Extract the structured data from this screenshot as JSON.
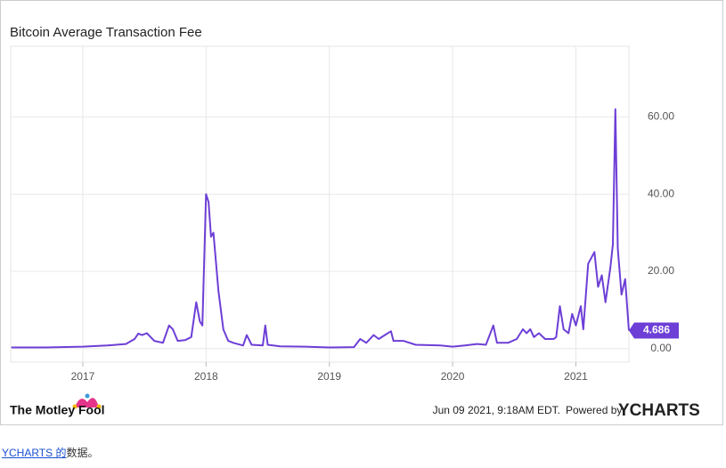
{
  "chart_data": {
    "type": "line",
    "title": "Bitcoin Average Transaction Fee",
    "x": [
      2016.42,
      2016.7,
      2017.0,
      2017.2,
      2017.35,
      2017.42,
      2017.45,
      2017.48,
      2017.52,
      2017.58,
      2017.65,
      2017.7,
      2017.73,
      2017.77,
      2017.83,
      2017.88,
      2017.92,
      2017.95,
      2017.97,
      2018.0,
      2018.02,
      2018.04,
      2018.06,
      2018.1,
      2018.14,
      2018.18,
      2018.22,
      2018.3,
      2018.33,
      2018.37,
      2018.46,
      2018.48,
      2018.5,
      2018.6,
      2018.8,
      2019.0,
      2019.2,
      2019.25,
      2019.3,
      2019.36,
      2019.4,
      2019.45,
      2019.5,
      2019.52,
      2019.6,
      2019.7,
      2019.9,
      2020.0,
      2020.1,
      2020.2,
      2020.27,
      2020.33,
      2020.36,
      2020.45,
      2020.52,
      2020.57,
      2020.6,
      2020.63,
      2020.66,
      2020.7,
      2020.75,
      2020.82,
      2020.84,
      2020.87,
      2020.9,
      2020.94,
      2020.97,
      2021.0,
      2021.04,
      2021.06,
      2021.1,
      2021.15,
      2021.18,
      2021.21,
      2021.24,
      2021.28,
      2021.3,
      2021.32,
      2021.34,
      2021.37,
      2021.4,
      2021.43
    ],
    "series": [
      {
        "name": "Bitcoin Average Transaction Fee",
        "color": "#6d3fd6",
        "values": [
          0.3,
          0.3,
          0.5,
          0.8,
          1.2,
          2.5,
          3.9,
          3.5,
          4,
          2,
          1.5,
          6,
          5,
          2,
          2.2,
          3,
          12,
          7,
          6,
          40,
          38,
          29,
          30,
          15,
          5,
          2,
          1.5,
          0.8,
          3.5,
          1,
          0.8,
          6,
          1,
          0.6,
          0.5,
          0.3,
          0.4,
          2.5,
          1.5,
          3.5,
          2.5,
          3.5,
          4.5,
          2,
          2,
          1,
          0.8,
          0.5,
          0.8,
          1.2,
          1,
          6,
          1.5,
          1.5,
          2.5,
          5,
          4,
          5,
          3,
          4,
          2.5,
          2.5,
          3,
          11,
          5,
          4,
          9,
          6,
          11,
          5,
          22,
          25,
          16,
          19,
          12,
          21,
          27,
          62,
          26,
          14,
          18,
          4.686
        ]
      }
    ],
    "last_label": "4.686",
    "xlim": [
      2016.415,
      2021.43
    ],
    "xticks": [
      2017,
      2018,
      2019,
      2020,
      2021
    ],
    "ylim": [
      -3.5,
      78.3
    ],
    "yticks": [
      {
        "value": 0,
        "label": "0.00"
      },
      {
        "value": 20,
        "label": "20.00"
      },
      {
        "value": 40,
        "label": "40.00"
      },
      {
        "value": 60,
        "label": "60.00"
      }
    ],
    "grid": true,
    "brand": "The Motley Fool",
    "timestamp": "Jun 09 2021, 9:18AM EDT.",
    "powered_by": "Powered by",
    "provider": "YCHARTS",
    "source_link": "YCHARTS 的",
    "source_text": "数据。"
  }
}
